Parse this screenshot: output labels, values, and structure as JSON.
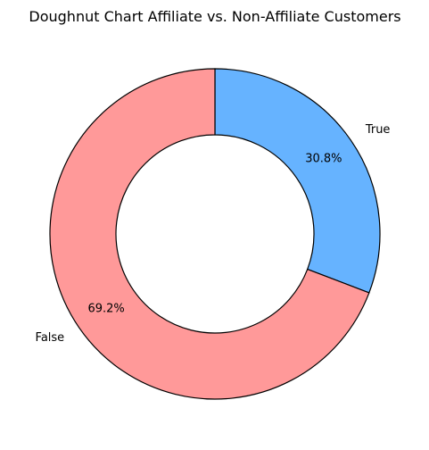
{
  "chart_data": {
    "type": "pie",
    "variant": "doughnut",
    "title": "Doughnut Chart Affiliate vs. Non-Affiliate Customers",
    "start_angle_deg": 90,
    "direction": "clockwise",
    "legend": "none",
    "slices": [
      {
        "label": "True",
        "value": 30.8,
        "pct_label": "30.8%",
        "color": "#66b3ff"
      },
      {
        "label": "False",
        "value": 69.2,
        "pct_label": "69.2%",
        "color": "#ff9999"
      }
    ]
  }
}
